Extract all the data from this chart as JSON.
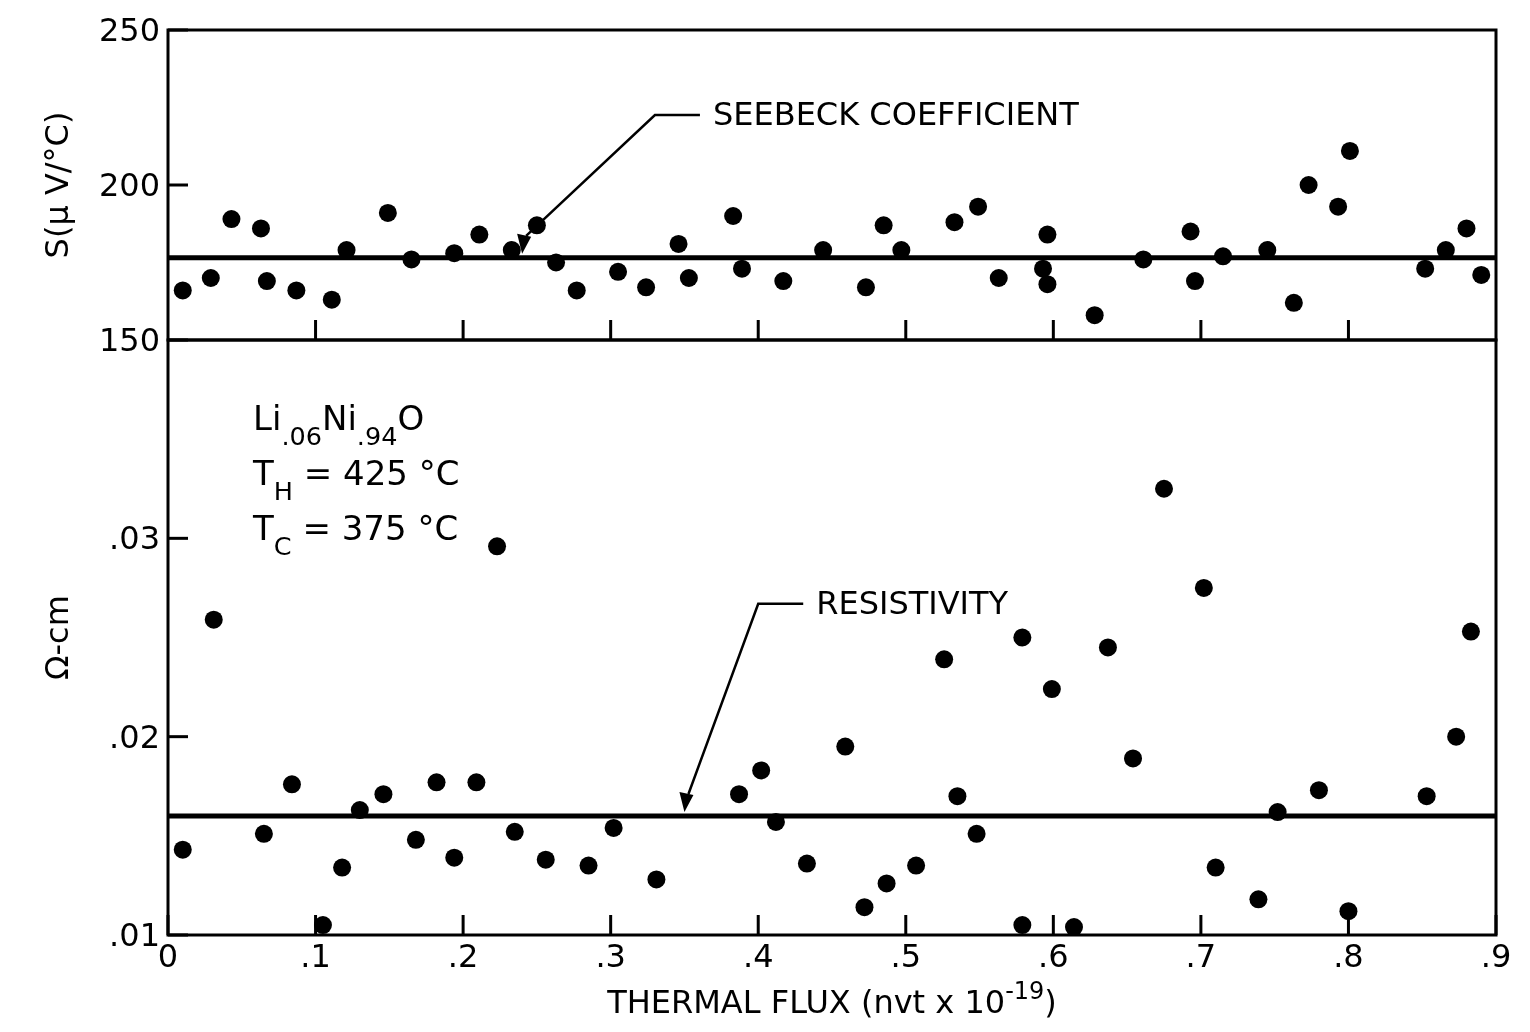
{
  "chart_data": [
    {
      "type": "scatter",
      "ylabel": "S(μ V/°C)",
      "xlim": [
        0,
        0.9
      ],
      "ylim": [
        150,
        250
      ],
      "yticks": [
        150,
        200,
        250
      ],
      "xticks": [
        {
          "value": 0.1,
          "label": null
        },
        {
          "value": 0.2,
          "label": null
        },
        {
          "value": 0.3,
          "label": null
        },
        {
          "value": 0.4,
          "label": null
        },
        {
          "value": 0.5,
          "label": null
        },
        {
          "value": 0.6,
          "label": null
        },
        {
          "value": 0.7,
          "label": null
        },
        {
          "value": 0.8,
          "label": null
        }
      ],
      "tick_labels": "y",
      "marker": "circle",
      "grid": false,
      "series": [
        {
          "color": "#000000",
          "x": [
            0.01,
            0.029,
            0.043,
            0.063,
            0.067,
            0.087,
            0.111,
            0.121,
            0.149,
            0.165,
            0.194,
            0.211,
            0.233,
            0.25,
            0.263,
            0.277,
            0.305,
            0.324,
            0.346,
            0.353,
            0.383,
            0.389,
            0.417,
            0.444,
            0.473,
            0.485,
            0.497,
            0.533,
            0.549,
            0.563,
            0.593,
            0.596,
            0.596,
            0.628,
            0.661,
            0.693,
            0.696,
            0.715,
            0.745,
            0.763,
            0.773,
            0.793,
            0.801,
            0.852,
            0.866,
            0.88,
            0.89
          ],
          "values": [
            166,
            170,
            189,
            186,
            169,
            166,
            163,
            179,
            191,
            176,
            178,
            184,
            179,
            187,
            175,
            166,
            172,
            167,
            181,
            170,
            190,
            173,
            169,
            179,
            167,
            187,
            179,
            188,
            193,
            170,
            173,
            184,
            168,
            158,
            176,
            185,
            169,
            177,
            179,
            162,
            200,
            193,
            211,
            173,
            179,
            186,
            171
          ]
        }
      ],
      "ref_lines": [
        {
          "axis": "y",
          "value": 176.5,
          "label": "SEEBECK COEFFICIENT",
          "color": "#000000"
        }
      ]
    },
    {
      "type": "scatter",
      "ylabel": "Ω-cm",
      "xlabel": "THERMAL FLUX (nvt x 10$^{-19}$)",
      "xlim": [
        0,
        0.9
      ],
      "ylim": [
        0.01,
        0.04
      ],
      "xticks": [
        {
          "value": 0,
          "label": "0"
        },
        {
          "value": 0.1,
          "label": ".1"
        },
        {
          "value": 0.2,
          "label": ".2"
        },
        {
          "value": 0.3,
          "label": ".3"
        },
        {
          "value": 0.4,
          "label": ".4"
        },
        {
          "value": 0.5,
          "label": ".5"
        },
        {
          "value": 0.6,
          "label": ".6"
        },
        {
          "value": 0.7,
          "label": ".7"
        },
        {
          "value": 0.8,
          "label": ".8"
        },
        {
          "value": 0.9,
          "label": ".9"
        }
      ],
      "yticks": [
        {
          "value": 0.01,
          "label": ".01"
        },
        {
          "value": 0.02,
          "label": ".02"
        },
        {
          "value": 0.03,
          "label": ".03"
        }
      ],
      "marker": "circle",
      "grid": false,
      "series": [
        {
          "color": "#000000",
          "x": [
            0.01,
            0.031,
            0.065,
            0.084,
            0.105,
            0.118,
            0.13,
            0.146,
            0.168,
            0.182,
            0.194,
            0.209,
            0.223,
            0.235,
            0.256,
            0.285,
            0.302,
            0.331,
            0.387,
            0.402,
            0.412,
            0.433,
            0.459,
            0.472,
            0.487,
            0.507,
            0.526,
            0.535,
            0.548,
            0.579,
            0.579,
            0.599,
            0.614,
            0.637,
            0.654,
            0.675,
            0.702,
            0.71,
            0.739,
            0.752,
            0.78,
            0.8,
            0.853,
            0.873,
            0.883
          ],
          "values": [
            0.0143,
            0.0259,
            0.0151,
            0.0176,
            0.0105,
            0.0134,
            0.0163,
            0.0171,
            0.0148,
            0.0177,
            0.0139,
            0.0177,
            0.0296,
            0.0152,
            0.0138,
            0.0135,
            0.0154,
            0.0128,
            0.0171,
            0.0183,
            0.0157,
            0.0136,
            0.0195,
            0.0114,
            0.0126,
            0.0135,
            0.0239,
            0.017,
            0.0151,
            0.0105,
            0.025,
            0.0224,
            0.0104,
            0.0245,
            0.0189,
            0.0325,
            0.0275,
            0.0134,
            0.0118,
            0.0162,
            0.0173,
            0.0112,
            0.017,
            0.02,
            0.0253
          ]
        }
      ],
      "ref_lines": [
        {
          "axis": "y",
          "value": 0.016,
          "label": "RESISTIVITY",
          "color": "#000000"
        }
      ],
      "annotations": [
        "Li$_{.06}$Ni$_{.94}$O",
        "T$_{H}$ = 425 °C",
        "T$_{C}$ = 375 °C"
      ]
    }
  ]
}
